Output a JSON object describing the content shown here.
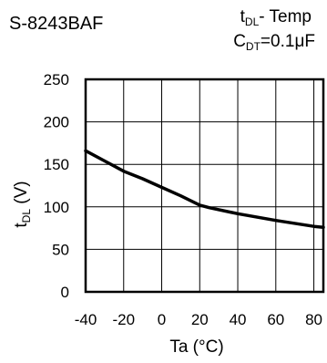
{
  "chart_data": {
    "type": "line",
    "title": "S-8243BAF",
    "subtitle": {
      "line1": {
        "main": "t",
        "sub": "DL",
        "rest": "- Temp"
      },
      "line2": {
        "main": "C",
        "sub": "DT",
        "rest": "=0.1",
        "unit": "μF"
      }
    },
    "xlabel": "Ta (°C)",
    "ylabel": {
      "main": "t",
      "sub": "DL",
      "rest": " (V)"
    },
    "xlim": [
      -40,
      85
    ],
    "ylim": [
      0,
      250
    ],
    "xticks": [
      -40,
      -20,
      0,
      20,
      40,
      60,
      80
    ],
    "yticks": [
      0,
      50,
      100,
      150,
      200,
      250
    ],
    "grid": true,
    "series": [
      {
        "x": [
          -40,
          -30,
          -20,
          -10,
          0,
          10,
          20,
          25,
          40,
          60,
          80,
          85
        ],
        "y": [
          166,
          154,
          142,
          133,
          123,
          113,
          102,
          99,
          92,
          84,
          77,
          76
        ],
        "color": "#000000"
      }
    ]
  }
}
